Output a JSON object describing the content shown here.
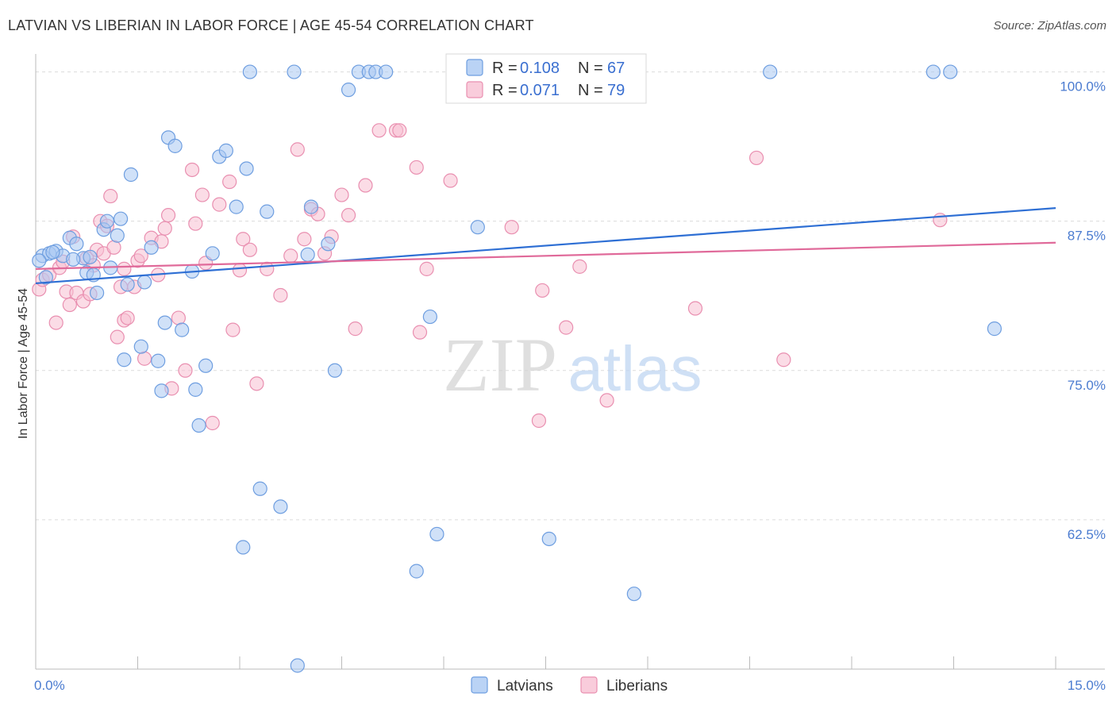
{
  "header": {
    "title": "LATVIAN VS LIBERIAN IN LABOR FORCE | AGE 45-54 CORRELATION CHART",
    "source": "Source: ZipAtlas.com"
  },
  "watermark": {
    "zip": "ZIP",
    "atlas": "atlas"
  },
  "colors": {
    "latvian_fill": "#a9c8f2",
    "latvian_stroke": "#6e9ee0",
    "latvian_line": "#2e6fd4",
    "liberian_fill": "#f7bfd2",
    "liberian_stroke": "#e98fb0",
    "liberian_line": "#e06a9a",
    "grid": "#dcdcdc",
    "tick_label": "#4a7bd0"
  },
  "stats_legend": {
    "latvians": {
      "r_label": "R =",
      "r_value": "0.108",
      "n_label": "N =",
      "n_value": "67"
    },
    "liberians": {
      "r_label": "R =",
      "r_value": "0.071",
      "n_label": "N =",
      "n_value": "79"
    }
  },
  "chart_data": {
    "type": "scatter",
    "title": "LATVIAN VS LIBERIAN IN LABOR FORCE | AGE 45-54 CORRELATION CHART",
    "xlabel": "",
    "ylabel": "In Labor Force | Age 45-54",
    "xlim": [
      0,
      15
    ],
    "ylim": [
      50,
      101.5
    ],
    "x_tick_labels": {
      "left": "0.0%",
      "right": "15.0%"
    },
    "y_ticks": [
      {
        "value": 100,
        "label": "100.0%"
      },
      {
        "value": 87.5,
        "label": "87.5%"
      },
      {
        "value": 75,
        "label": "75.0%"
      },
      {
        "value": 62.5,
        "label": "62.5%"
      }
    ],
    "grid": true,
    "legend_position": "bottom",
    "series": [
      {
        "name": "Latvians",
        "trend": {
          "x0": 0,
          "y0": 82.3,
          "x1": 15,
          "y1": 88.6
        },
        "points": [
          [
            0.1,
            84.6
          ],
          [
            0.2,
            84.8
          ],
          [
            0.3,
            85.0
          ],
          [
            0.4,
            84.6
          ],
          [
            0.5,
            86.1
          ],
          [
            0.6,
            85.6
          ],
          [
            0.7,
            84.4
          ],
          [
            0.75,
            83.2
          ],
          [
            0.8,
            84.5
          ],
          [
            0.9,
            81.5
          ],
          [
            1.0,
            86.8
          ],
          [
            1.05,
            87.5
          ],
          [
            1.1,
            83.6
          ],
          [
            1.2,
            86.3
          ],
          [
            1.25,
            87.7
          ],
          [
            1.35,
            82.2
          ],
          [
            1.4,
            91.4
          ],
          [
            1.55,
            77.0
          ],
          [
            1.6,
            82.4
          ],
          [
            1.7,
            85.3
          ],
          [
            1.8,
            75.8
          ],
          [
            1.85,
            73.3
          ],
          [
            1.9,
            79.0
          ],
          [
            1.95,
            94.5
          ],
          [
            2.05,
            93.8
          ],
          [
            2.15,
            78.4
          ],
          [
            2.3,
            83.3
          ],
          [
            2.35,
            73.4
          ],
          [
            2.4,
            70.4
          ],
          [
            2.5,
            75.4
          ],
          [
            2.6,
            84.8
          ],
          [
            2.7,
            92.9
          ],
          [
            2.8,
            93.4
          ],
          [
            2.95,
            88.7
          ],
          [
            3.05,
            60.2
          ],
          [
            3.1,
            91.9
          ],
          [
            3.15,
            100.0
          ],
          [
            3.3,
            65.1
          ],
          [
            3.4,
            88.3
          ],
          [
            3.6,
            63.6
          ],
          [
            3.8,
            100.0
          ],
          [
            3.85,
            50.3
          ],
          [
            4.0,
            84.7
          ],
          [
            4.05,
            88.7
          ],
          [
            4.3,
            85.6
          ],
          [
            4.4,
            75.0
          ],
          [
            4.6,
            98.5
          ],
          [
            4.75,
            100.0
          ],
          [
            4.9,
            100.0
          ],
          [
            5.0,
            100.0
          ],
          [
            5.15,
            100.0
          ],
          [
            5.6,
            58.2
          ],
          [
            5.8,
            79.5
          ],
          [
            5.9,
            61.3
          ],
          [
            6.5,
            87.0
          ],
          [
            7.55,
            60.9
          ],
          [
            8.8,
            56.3
          ],
          [
            10.8,
            100.0
          ],
          [
            13.2,
            100.0
          ],
          [
            13.45,
            100.0
          ],
          [
            14.1,
            78.5
          ],
          [
            0.05,
            84.2
          ],
          [
            0.15,
            82.8
          ],
          [
            0.25,
            84.9
          ],
          [
            0.55,
            84.3
          ],
          [
            0.85,
            83.0
          ],
          [
            1.3,
            75.9
          ]
        ]
      },
      {
        "name": "Liberians",
        "trend": {
          "x0": 0,
          "y0": 83.5,
          "x1": 15,
          "y1": 85.7
        },
        "points": [
          [
            0.05,
            81.8
          ],
          [
            0.1,
            82.6
          ],
          [
            0.2,
            83.0
          ],
          [
            0.3,
            79.0
          ],
          [
            0.35,
            83.6
          ],
          [
            0.4,
            84.1
          ],
          [
            0.45,
            81.6
          ],
          [
            0.5,
            80.5
          ],
          [
            0.55,
            86.2
          ],
          [
            0.6,
            81.5
          ],
          [
            0.7,
            80.8
          ],
          [
            0.75,
            84.4
          ],
          [
            0.8,
            81.4
          ],
          [
            0.85,
            83.8
          ],
          [
            0.9,
            85.1
          ],
          [
            0.95,
            87.5
          ],
          [
            1.0,
            84.8
          ],
          [
            1.05,
            87.1
          ],
          [
            1.1,
            89.6
          ],
          [
            1.15,
            85.3
          ],
          [
            1.2,
            77.8
          ],
          [
            1.25,
            82.0
          ],
          [
            1.3,
            79.2
          ],
          [
            1.35,
            79.4
          ],
          [
            1.45,
            82.0
          ],
          [
            1.5,
            84.2
          ],
          [
            1.55,
            84.6
          ],
          [
            1.6,
            76.0
          ],
          [
            1.7,
            86.1
          ],
          [
            1.8,
            83.0
          ],
          [
            1.85,
            85.8
          ],
          [
            1.9,
            86.9
          ],
          [
            1.95,
            88.0
          ],
          [
            2.0,
            73.5
          ],
          [
            2.1,
            79.4
          ],
          [
            2.2,
            75.0
          ],
          [
            2.3,
            91.8
          ],
          [
            2.35,
            87.3
          ],
          [
            2.45,
            89.7
          ],
          [
            2.5,
            84.0
          ],
          [
            2.6,
            70.6
          ],
          [
            2.7,
            88.9
          ],
          [
            2.85,
            90.8
          ],
          [
            2.9,
            78.4
          ],
          [
            3.0,
            83.4
          ],
          [
            3.05,
            86.0
          ],
          [
            3.15,
            85.1
          ],
          [
            3.25,
            73.9
          ],
          [
            3.4,
            83.5
          ],
          [
            3.6,
            81.3
          ],
          [
            3.75,
            84.6
          ],
          [
            3.85,
            93.5
          ],
          [
            3.95,
            86.0
          ],
          [
            4.05,
            88.5
          ],
          [
            4.15,
            88.1
          ],
          [
            4.25,
            84.8
          ],
          [
            4.35,
            86.2
          ],
          [
            4.5,
            89.7
          ],
          [
            4.6,
            88.0
          ],
          [
            4.7,
            78.5
          ],
          [
            4.85,
            90.5
          ],
          [
            5.05,
            95.1
          ],
          [
            5.3,
            95.1
          ],
          [
            5.35,
            95.1
          ],
          [
            5.6,
            92.0
          ],
          [
            5.65,
            78.2
          ],
          [
            5.75,
            83.5
          ],
          [
            6.1,
            90.9
          ],
          [
            7.0,
            87.0
          ],
          [
            7.4,
            70.8
          ],
          [
            7.45,
            81.7
          ],
          [
            7.8,
            78.6
          ],
          [
            8.0,
            83.7
          ],
          [
            8.4,
            72.5
          ],
          [
            9.7,
            80.2
          ],
          [
            10.6,
            92.8
          ],
          [
            11.0,
            75.9
          ],
          [
            13.3,
            87.6
          ],
          [
            1.3,
            83.5
          ]
        ]
      }
    ]
  },
  "bottom_legend": {
    "latvians": "Latvians",
    "liberians": "Liberians"
  }
}
